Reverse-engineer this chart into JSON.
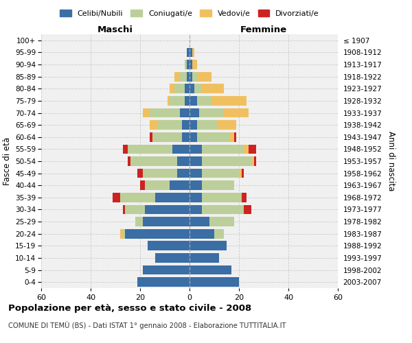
{
  "age_groups": [
    "100+",
    "95-99",
    "90-94",
    "85-89",
    "80-84",
    "75-79",
    "70-74",
    "65-69",
    "60-64",
    "55-59",
    "50-54",
    "45-49",
    "40-44",
    "35-39",
    "30-34",
    "25-29",
    "20-24",
    "15-19",
    "10-14",
    "5-9",
    "0-4"
  ],
  "birth_years": [
    "≤ 1907",
    "1908-1912",
    "1913-1917",
    "1918-1922",
    "1923-1927",
    "1928-1932",
    "1933-1937",
    "1938-1942",
    "1943-1947",
    "1948-1952",
    "1953-1957",
    "1958-1962",
    "1963-1967",
    "1968-1972",
    "1973-1977",
    "1978-1982",
    "1983-1987",
    "1988-1992",
    "1993-1997",
    "1998-2002",
    "2003-2007"
  ],
  "male": {
    "celibi": [
      0,
      1,
      1,
      1,
      2,
      2,
      4,
      3,
      3,
      7,
      5,
      5,
      8,
      14,
      18,
      19,
      26,
      17,
      14,
      19,
      21
    ],
    "coniugati": [
      0,
      0,
      1,
      3,
      4,
      6,
      12,
      10,
      12,
      18,
      19,
      14,
      10,
      14,
      8,
      3,
      1,
      0,
      0,
      0,
      0
    ],
    "vedovi": [
      0,
      0,
      0,
      2,
      2,
      1,
      3,
      3,
      0,
      0,
      0,
      0,
      0,
      0,
      0,
      0,
      1,
      0,
      0,
      0,
      0
    ],
    "divorziati": [
      0,
      0,
      0,
      0,
      0,
      0,
      0,
      0,
      1,
      2,
      1,
      2,
      2,
      3,
      1,
      0,
      0,
      0,
      0,
      0,
      0
    ]
  },
  "female": {
    "nubili": [
      0,
      1,
      1,
      1,
      2,
      3,
      4,
      3,
      3,
      5,
      5,
      5,
      5,
      5,
      5,
      8,
      10,
      15,
      12,
      17,
      20
    ],
    "coniugate": [
      0,
      0,
      0,
      2,
      3,
      6,
      10,
      8,
      13,
      17,
      20,
      15,
      13,
      16,
      17,
      10,
      4,
      0,
      0,
      0,
      0
    ],
    "vedove": [
      0,
      1,
      2,
      6,
      9,
      14,
      10,
      8,
      2,
      2,
      1,
      1,
      0,
      0,
      0,
      0,
      0,
      0,
      0,
      0,
      0
    ],
    "divorziate": [
      0,
      0,
      0,
      0,
      0,
      0,
      0,
      0,
      1,
      3,
      1,
      1,
      0,
      2,
      3,
      0,
      0,
      0,
      0,
      0,
      0
    ]
  },
  "colors": {
    "celibi": "#3a6ea5",
    "coniugati": "#bccf9a",
    "vedovi": "#f0c060",
    "divorziati": "#cc2222"
  },
  "xlim": 60,
  "title": "Popolazione per età, sesso e stato civile - 2008",
  "subtitle": "COMUNE DI TEMÙ (BS) - Dati ISTAT 1° gennaio 2008 - Elaborazione TUTTITALIA.IT",
  "ylabel_left": "Fasce di età",
  "ylabel_right": "Anni di nascita",
  "xlabel_left": "Maschi",
  "xlabel_right": "Femmine"
}
